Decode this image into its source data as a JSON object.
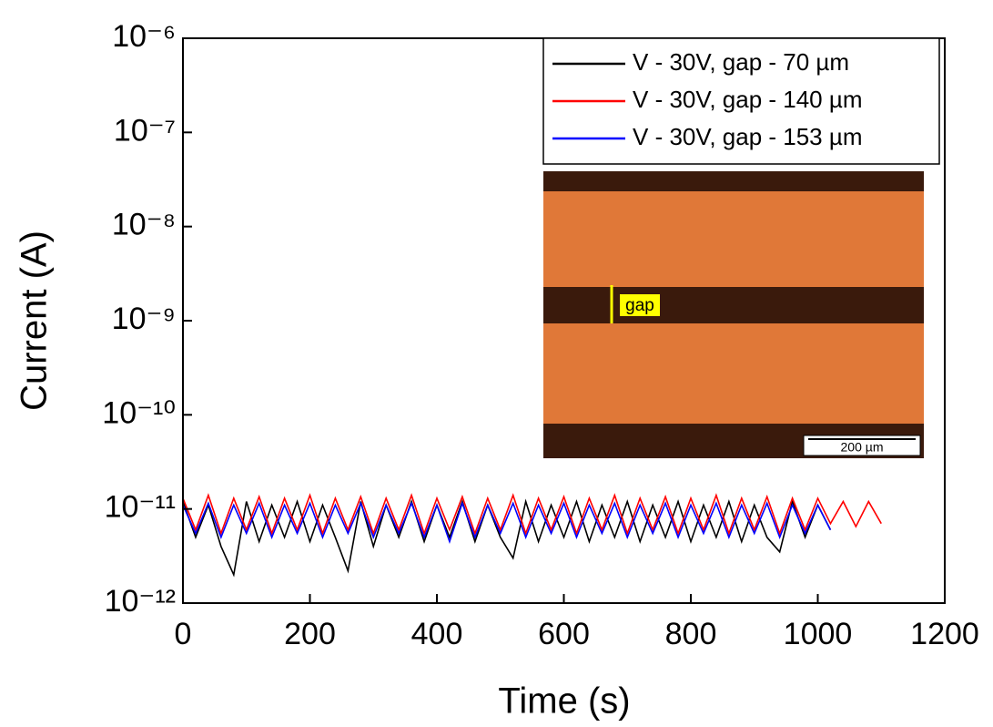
{
  "chart_data": {
    "type": "line",
    "xlabel": "Time (s)",
    "ylabel": "Current (A)",
    "xlim": [
      0,
      1200
    ],
    "xticks": [
      0,
      200,
      400,
      600,
      800,
      1000,
      1200
    ],
    "ylim": [
      1e-12,
      1e-06
    ],
    "log_y": true,
    "yticks": [
      {
        "value": 1e-12,
        "label": "10⁻¹²"
      },
      {
        "value": 1e-11,
        "label": "10⁻¹¹"
      },
      {
        "value": 1e-10,
        "label": "10⁻¹⁰"
      },
      {
        "value": 1e-09,
        "label": "10⁻⁹"
      },
      {
        "value": 1e-08,
        "label": "10⁻⁸"
      },
      {
        "value": 1e-07,
        "label": "10⁻⁷"
      },
      {
        "value": 1e-06,
        "label": "10⁻⁶"
      }
    ],
    "legend": "upper right",
    "annotations": [
      "gap",
      "200 µm"
    ],
    "series": [
      {
        "name": "V - 30V, gap - 70 µm",
        "color": "#000000",
        "x": [
          0,
          20,
          40,
          60,
          80,
          100,
          120,
          140,
          160,
          180,
          200,
          220,
          240,
          260,
          280,
          300,
          320,
          340,
          360,
          380,
          400,
          420,
          440,
          460,
          480,
          500,
          520,
          540,
          560,
          580,
          600,
          620,
          640,
          660,
          680,
          700,
          720,
          740,
          760,
          780,
          800,
          820,
          840,
          860,
          880,
          900,
          920,
          940,
          960,
          980,
          1000,
          1020
        ],
        "values": [
          1.2e-11,
          5e-12,
          1.1e-11,
          4e-12,
          2e-12,
          1.2e-11,
          4.5e-12,
          1.1e-11,
          5e-12,
          1.2e-11,
          4.5e-12,
          1.1e-11,
          5e-12,
          2.2e-12,
          1.2e-11,
          4e-12,
          1.1e-11,
          5e-12,
          1.2e-11,
          4.5e-12,
          1.1e-11,
          5e-12,
          1.2e-11,
          4.5e-12,
          1.1e-11,
          5e-12,
          3e-12,
          1.2e-11,
          4.5e-12,
          1.1e-11,
          5e-12,
          1.2e-11,
          4.5e-12,
          1.1e-11,
          5e-12,
          1.2e-11,
          4.5e-12,
          1.1e-11,
          5e-12,
          1.2e-11,
          4.5e-12,
          1.1e-11,
          5e-12,
          1.2e-11,
          4.5e-12,
          1.1e-11,
          5e-12,
          3.5e-12,
          1.2e-11,
          5e-12,
          1.1e-11,
          6e-12
        ]
      },
      {
        "name": "V - 30V, gap - 140 µm",
        "color": "#ff0000",
        "x": [
          0,
          20,
          40,
          60,
          80,
          100,
          120,
          140,
          160,
          180,
          200,
          220,
          240,
          260,
          280,
          300,
          320,
          340,
          360,
          380,
          400,
          420,
          440,
          460,
          480,
          500,
          520,
          540,
          560,
          580,
          600,
          620,
          640,
          660,
          680,
          700,
          720,
          740,
          760,
          780,
          800,
          820,
          840,
          860,
          880,
          900,
          920,
          940,
          960,
          980,
          1000,
          1020,
          1040,
          1060,
          1080,
          1100
        ],
        "values": [
          1.3e-11,
          6e-12,
          1.4e-11,
          5.5e-12,
          1.3e-11,
          6e-12,
          1.35e-11,
          5.5e-12,
          1.3e-11,
          6e-12,
          1.4e-11,
          5.5e-12,
          1.3e-11,
          6e-12,
          1.35e-11,
          5.5e-12,
          1.3e-11,
          6e-12,
          1.4e-11,
          5.5e-12,
          1.3e-11,
          6e-12,
          1.35e-11,
          5.5e-12,
          1.3e-11,
          6e-12,
          1.4e-11,
          5.5e-12,
          1.3e-11,
          6e-12,
          1.35e-11,
          5.5e-12,
          1.3e-11,
          6e-12,
          1.4e-11,
          5.5e-12,
          1.3e-11,
          6e-12,
          1.35e-11,
          5.5e-12,
          1.3e-11,
          6e-12,
          1.4e-11,
          5.5e-12,
          1.3e-11,
          6e-12,
          1.35e-11,
          5.5e-12,
          1.3e-11,
          6e-12,
          1.3e-11,
          7e-12,
          1.2e-11,
          6.5e-12,
          1.2e-11,
          7e-12
        ]
      },
      {
        "name": "V - 30V, gap - 153 µm",
        "color": "#0000ff",
        "x": [
          0,
          20,
          40,
          60,
          80,
          100,
          120,
          140,
          160,
          180,
          200,
          220,
          240,
          260,
          280,
          300,
          320,
          340,
          360,
          380,
          400,
          420,
          440,
          460,
          480,
          500,
          520,
          540,
          560,
          580,
          600,
          620,
          640,
          660,
          680,
          700,
          720,
          740,
          760,
          780,
          800,
          820,
          840,
          860,
          880,
          900,
          920,
          940,
          960,
          980,
          1000,
          1020
        ],
        "values": [
          1.1e-11,
          5.5e-12,
          1.15e-11,
          5e-12,
          1.1e-11,
          5.5e-12,
          1.15e-11,
          5e-12,
          1.1e-11,
          5.5e-12,
          1.15e-11,
          5e-12,
          1.1e-11,
          5.5e-12,
          1.15e-11,
          5e-12,
          1.1e-11,
          5.5e-12,
          1.15e-11,
          5e-12,
          1.1e-11,
          4.5e-12,
          1.15e-11,
          5e-12,
          1.1e-11,
          5.5e-12,
          1.15e-11,
          5e-12,
          1.1e-11,
          5.5e-12,
          1.15e-11,
          5e-12,
          1.1e-11,
          5.5e-12,
          1.15e-11,
          5e-12,
          1.1e-11,
          5.5e-12,
          1.15e-11,
          5e-12,
          1.1e-11,
          5.5e-12,
          1.15e-11,
          5e-12,
          1.1e-11,
          5.5e-12,
          1.15e-11,
          5e-12,
          1.1e-11,
          5.5e-12,
          1.1e-11,
          6e-12
        ]
      }
    ]
  }
}
